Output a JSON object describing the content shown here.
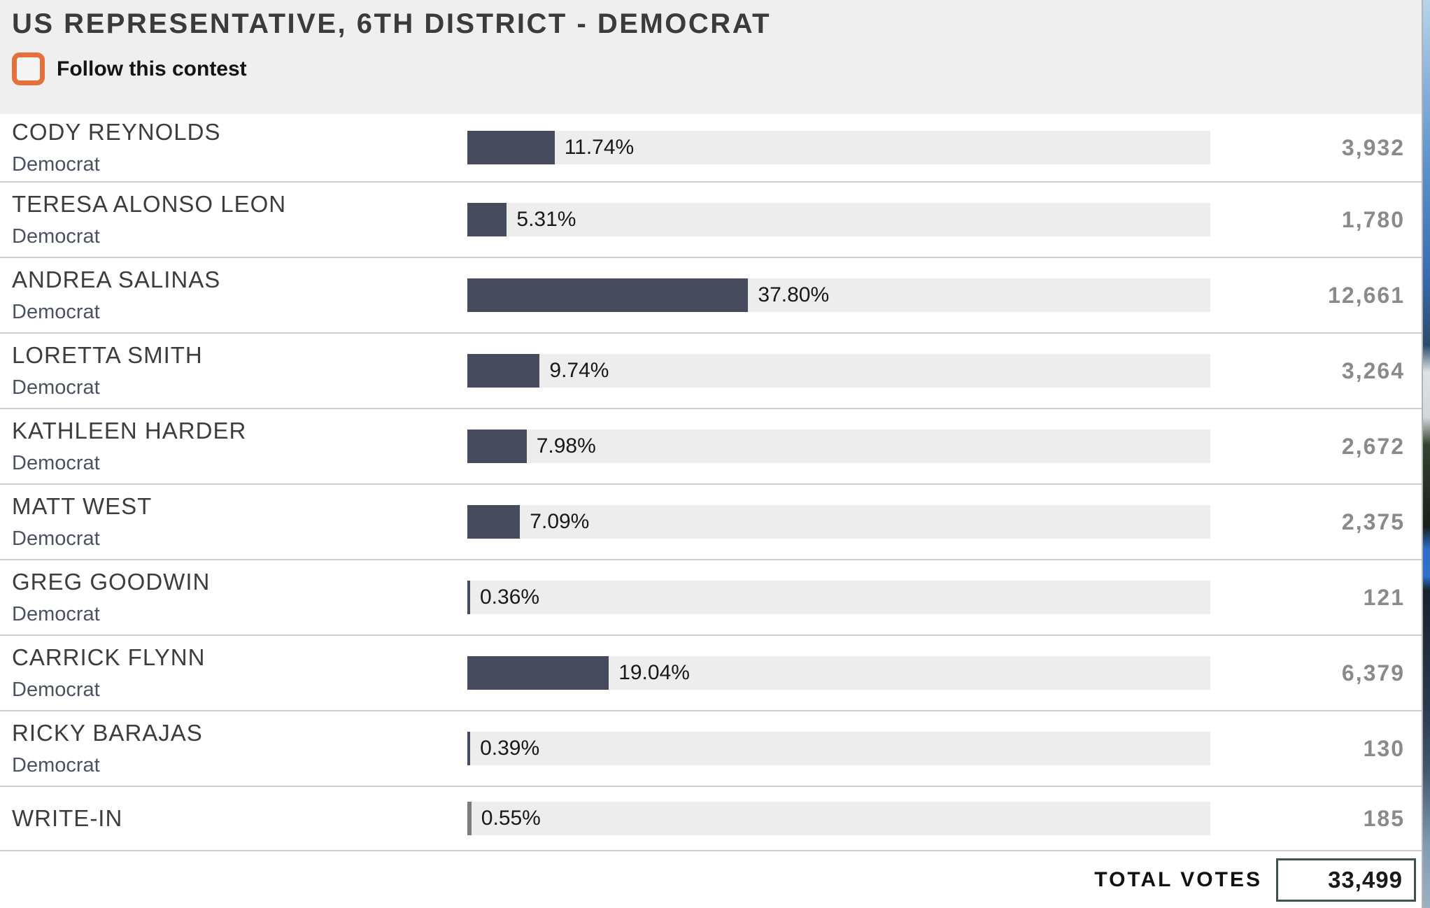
{
  "header": {
    "title": "US REPRESENTATIVE, 6TH DISTRICT - DEMOCRAT",
    "follow_label": "Follow this contest",
    "follow_checked": false
  },
  "colors": {
    "accent_orange": "#e4703c",
    "header_band": "#efefef",
    "bar_track": "#ededed",
    "bar_fill": "#454b5c",
    "bar_fill_writein": "#7d7d7d",
    "separator": "#cfcfcf",
    "name_text": "#3d3d3d",
    "party_text": "#4b5264",
    "count_text": "#8a8a8a",
    "total_box_border": "#3e5349"
  },
  "results": {
    "candidates": [
      {
        "name": "CODY REYNOLDS",
        "party": "Democrat",
        "pct": 11.74,
        "pct_label": "11.74%",
        "votes": "3,932",
        "bar_color": "#454b5c"
      },
      {
        "name": "TERESA ALONSO LEON",
        "party": "Democrat",
        "pct": 5.31,
        "pct_label": "5.31%",
        "votes": "1,780",
        "bar_color": "#454b5c"
      },
      {
        "name": "ANDREA SALINAS",
        "party": "Democrat",
        "pct": 37.8,
        "pct_label": "37.80%",
        "votes": "12,661",
        "bar_color": "#454b5c"
      },
      {
        "name": "LORETTA SMITH",
        "party": "Democrat",
        "pct": 9.74,
        "pct_label": "9.74%",
        "votes": "3,264",
        "bar_color": "#454b5c"
      },
      {
        "name": "KATHLEEN HARDER",
        "party": "Democrat",
        "pct": 7.98,
        "pct_label": "7.98%",
        "votes": "2,672",
        "bar_color": "#454b5c"
      },
      {
        "name": "MATT WEST",
        "party": "Democrat",
        "pct": 7.09,
        "pct_label": "7.09%",
        "votes": "2,375",
        "bar_color": "#454b5c"
      },
      {
        "name": "GREG GOODWIN",
        "party": "Democrat",
        "pct": 0.36,
        "pct_label": "0.36%",
        "votes": "121",
        "bar_color": "#454b5c"
      },
      {
        "name": "CARRICK FLYNN",
        "party": "Democrat",
        "pct": 19.04,
        "pct_label": "19.04%",
        "votes": "6,379",
        "bar_color": "#454b5c"
      },
      {
        "name": "RICKY BARAJAS",
        "party": "Democrat",
        "pct": 0.39,
        "pct_label": "0.39%",
        "votes": "130",
        "bar_color": "#454b5c"
      },
      {
        "name": "WRITE-IN",
        "party": "",
        "pct": 0.55,
        "pct_label": "0.55%",
        "votes": "185",
        "bar_color": "#7d7d7d"
      }
    ],
    "total": {
      "label": "TOTAL VOTES",
      "value": "33,499"
    }
  }
}
